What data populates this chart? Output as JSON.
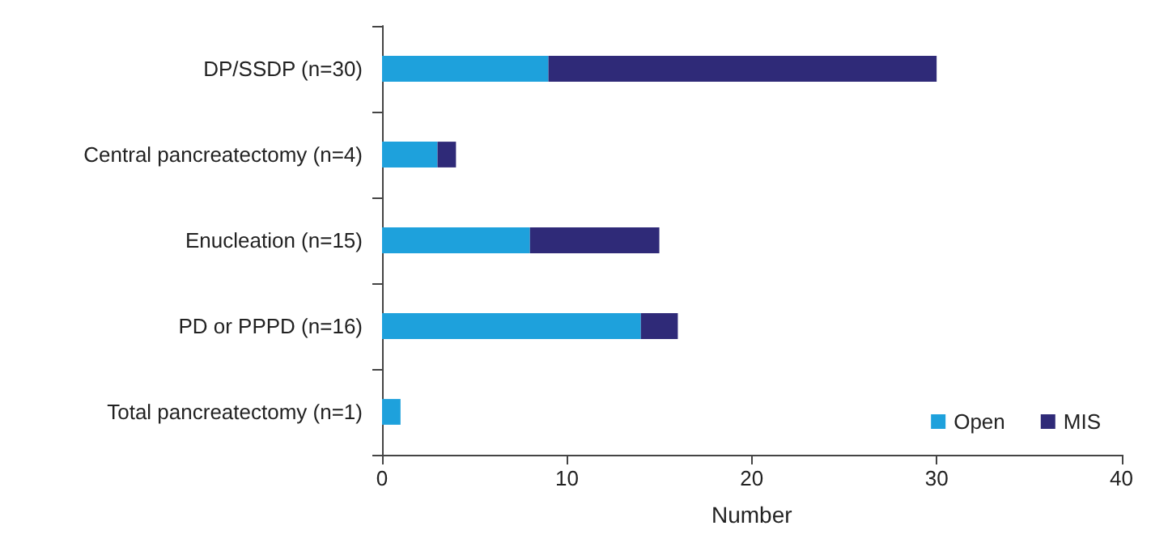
{
  "chart_data": {
    "type": "bar",
    "orientation": "horizontal",
    "stacked": true,
    "xlabel": "Number",
    "categories": [
      "DP/SSDP (n=30)",
      "Central pancreatectomy (n=4)",
      "Enucleation (n=15)",
      "PD or PPPD (n=16)",
      "Total pancreatectomy (n=1)"
    ],
    "series": [
      {
        "name": "Open",
        "color": "#1ea1dc",
        "values": [
          9,
          3,
          8,
          14,
          1
        ]
      },
      {
        "name": "MIS",
        "color": "#2f2a78",
        "values": [
          21,
          1,
          7,
          2,
          0
        ]
      }
    ],
    "xlim": [
      0,
      40
    ],
    "xticks": [
      0,
      10,
      20,
      30,
      40
    ],
    "grid": false,
    "legend": "bottom right"
  }
}
